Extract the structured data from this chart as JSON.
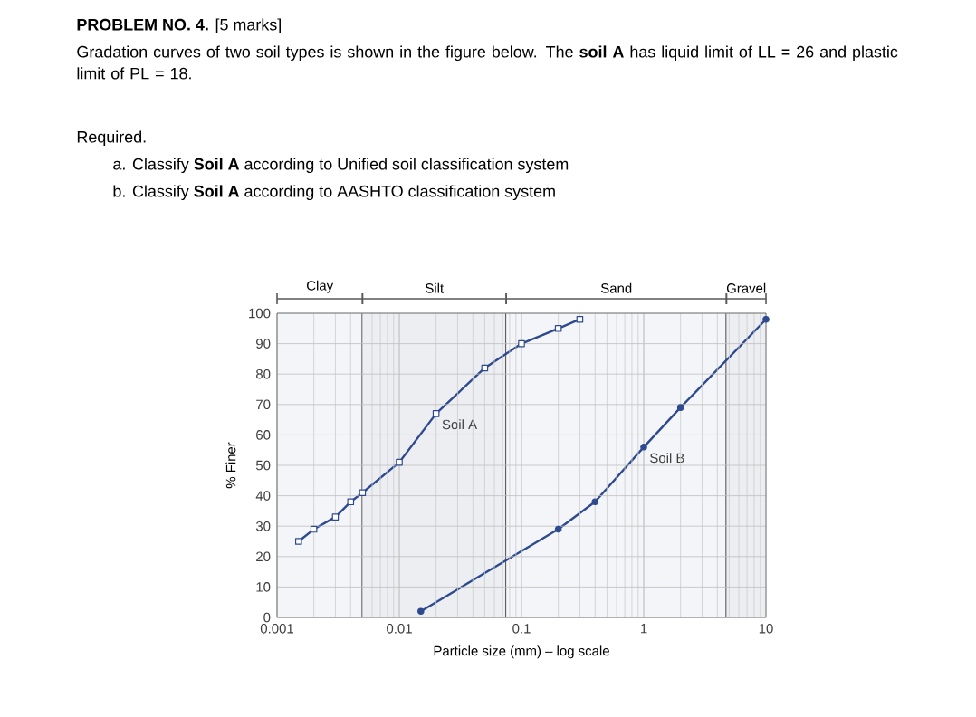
{
  "chart_data": {
    "type": "line",
    "title": "**PROBLEM NO. 4.** [5 marks]",
    "subtitle": "Gradation curves of two soil types is shown in the figure below. The **soil A** has liquid limit of LL = 26 and plastic limit of PL = 18.",
    "annotations": [
      "Required.",
      "a. Classify **Soil A** according to Unified soil classification system",
      "b. Classify **Soil A** according to AASHTO classification system"
    ],
    "xlabel": "Particle size (mm) – log scale",
    "ylabel": "% Finer",
    "log": "x",
    "xlim": [
      0.001,
      10
    ],
    "xticks": [
      0.001,
      0.01,
      0.1,
      1,
      10
    ],
    "ylim": [
      0,
      100
    ],
    "yticks": [
      0,
      10,
      20,
      30,
      40,
      50,
      60,
      70,
      80,
      90,
      100
    ],
    "grid": true,
    "bands": [
      {
        "axis": "x",
        "from": 0.001,
        "to": 0.005,
        "label": "Clay",
        "color": "#f4f5f8"
      },
      {
        "axis": "x",
        "from": 0.005,
        "to": 0.075,
        "label": "Silt",
        "color": "#eceef2"
      },
      {
        "axis": "x",
        "from": 0.075,
        "to": 4.75,
        "label": "Sand",
        "color": "#f4f5f8"
      },
      {
        "axis": "x",
        "from": 4.75,
        "to": 10,
        "label": "Gravel",
        "color": "#eceef2"
      }
    ],
    "series": [
      {
        "name": "Soil A",
        "color": "#2e4a8f",
        "marker": "square",
        "x": [
          0.0015,
          0.002,
          0.003,
          0.004,
          0.005,
          0.01,
          0.02,
          0.05,
          0.1,
          0.2,
          0.3
        ],
        "values": [
          25,
          29,
          33,
          38,
          41,
          51,
          67,
          82,
          90,
          95,
          98
        ]
      },
      {
        "name": "Soil B",
        "color": "#2e4a8f",
        "marker": "circle",
        "x": [
          0.015,
          0.2,
          0.4,
          1,
          2,
          10
        ],
        "values": [
          2,
          29,
          38,
          56,
          69,
          98
        ]
      }
    ]
  }
}
